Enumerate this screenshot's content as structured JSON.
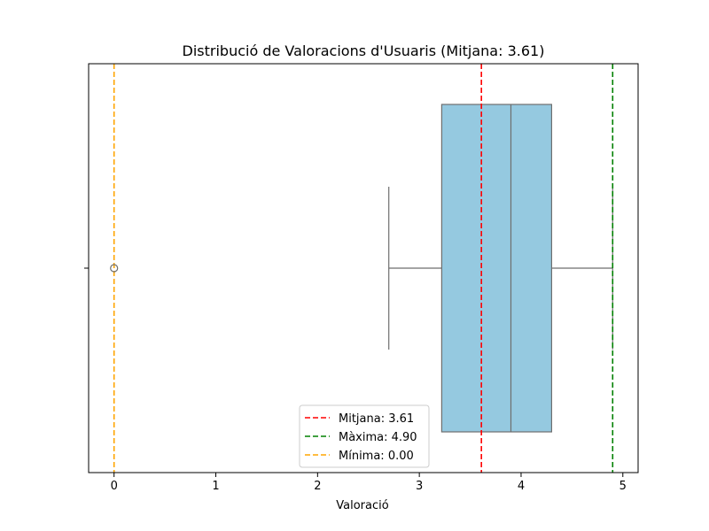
{
  "chart_data": {
    "type": "box",
    "title": "Distribució de Valoracions d'Usuaris (Mitjana: 3.61)",
    "xlabel": "Valoració",
    "ylabel": "",
    "xlim": [
      -0.25,
      5.15
    ],
    "xticks": [
      0,
      1,
      2,
      3,
      4,
      5
    ],
    "grid": false,
    "box": {
      "whisker_low": 2.7,
      "q1": 3.22,
      "median": 3.9,
      "q3": 4.3,
      "whisker_high": 4.9,
      "outliers": [
        0.0
      ],
      "color": "#95c9e0",
      "line_color": "#6e6e6e"
    },
    "reference_lines": [
      {
        "label": "Mitjana: 3.61",
        "value": 3.61,
        "color": "#ff0000"
      },
      {
        "label": "Màxima: 4.90",
        "value": 4.9,
        "color": "#008000"
      },
      {
        "label": "Mínima: 0.00",
        "value": 0.0,
        "color": "#ffa500"
      }
    ],
    "legend_position": "bottom-center"
  }
}
